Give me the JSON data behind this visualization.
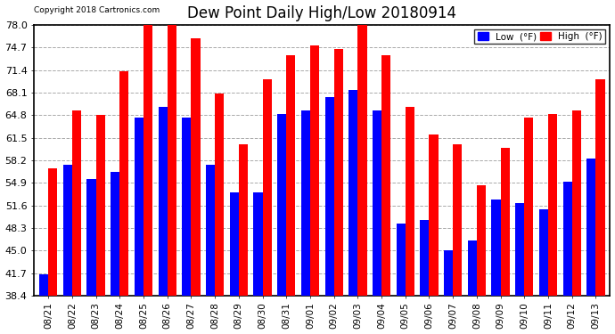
{
  "title": "Dew Point Daily High/Low 20180914",
  "copyright": "Copyright 2018 Cartronics.com",
  "dates": [
    "08/21",
    "08/22",
    "08/23",
    "08/24",
    "08/25",
    "08/26",
    "08/27",
    "08/28",
    "08/29",
    "08/30",
    "08/31",
    "09/01",
    "09/02",
    "09/03",
    "09/04",
    "09/05",
    "09/06",
    "09/07",
    "09/08",
    "09/09",
    "09/10",
    "09/11",
    "09/12",
    "09/13"
  ],
  "high": [
    57.0,
    65.5,
    64.8,
    71.2,
    78.0,
    78.5,
    76.0,
    68.0,
    60.5,
    70.0,
    73.5,
    75.0,
    74.5,
    78.8,
    73.5,
    66.0,
    62.0,
    60.5,
    54.5,
    60.0,
    64.5,
    65.0,
    65.5,
    70.0
  ],
  "low": [
    41.5,
    57.5,
    55.5,
    56.5,
    64.5,
    66.0,
    64.5,
    57.5,
    53.5,
    53.5,
    65.0,
    65.5,
    67.5,
    68.5,
    65.5,
    49.0,
    49.5,
    45.0,
    46.5,
    52.5,
    52.0,
    51.0,
    55.0,
    58.5
  ],
  "low_color": "#0000ff",
  "high_color": "#ff0000",
  "bg_color": "#ffffff",
  "grid_color": "#aaaaaa",
  "ylim_min": 38.4,
  "ylim_max": 78.0,
  "yticks": [
    38.4,
    41.7,
    45.0,
    48.3,
    51.6,
    54.9,
    58.2,
    61.5,
    64.8,
    68.1,
    71.4,
    74.7,
    78.0
  ],
  "bar_width": 0.38
}
